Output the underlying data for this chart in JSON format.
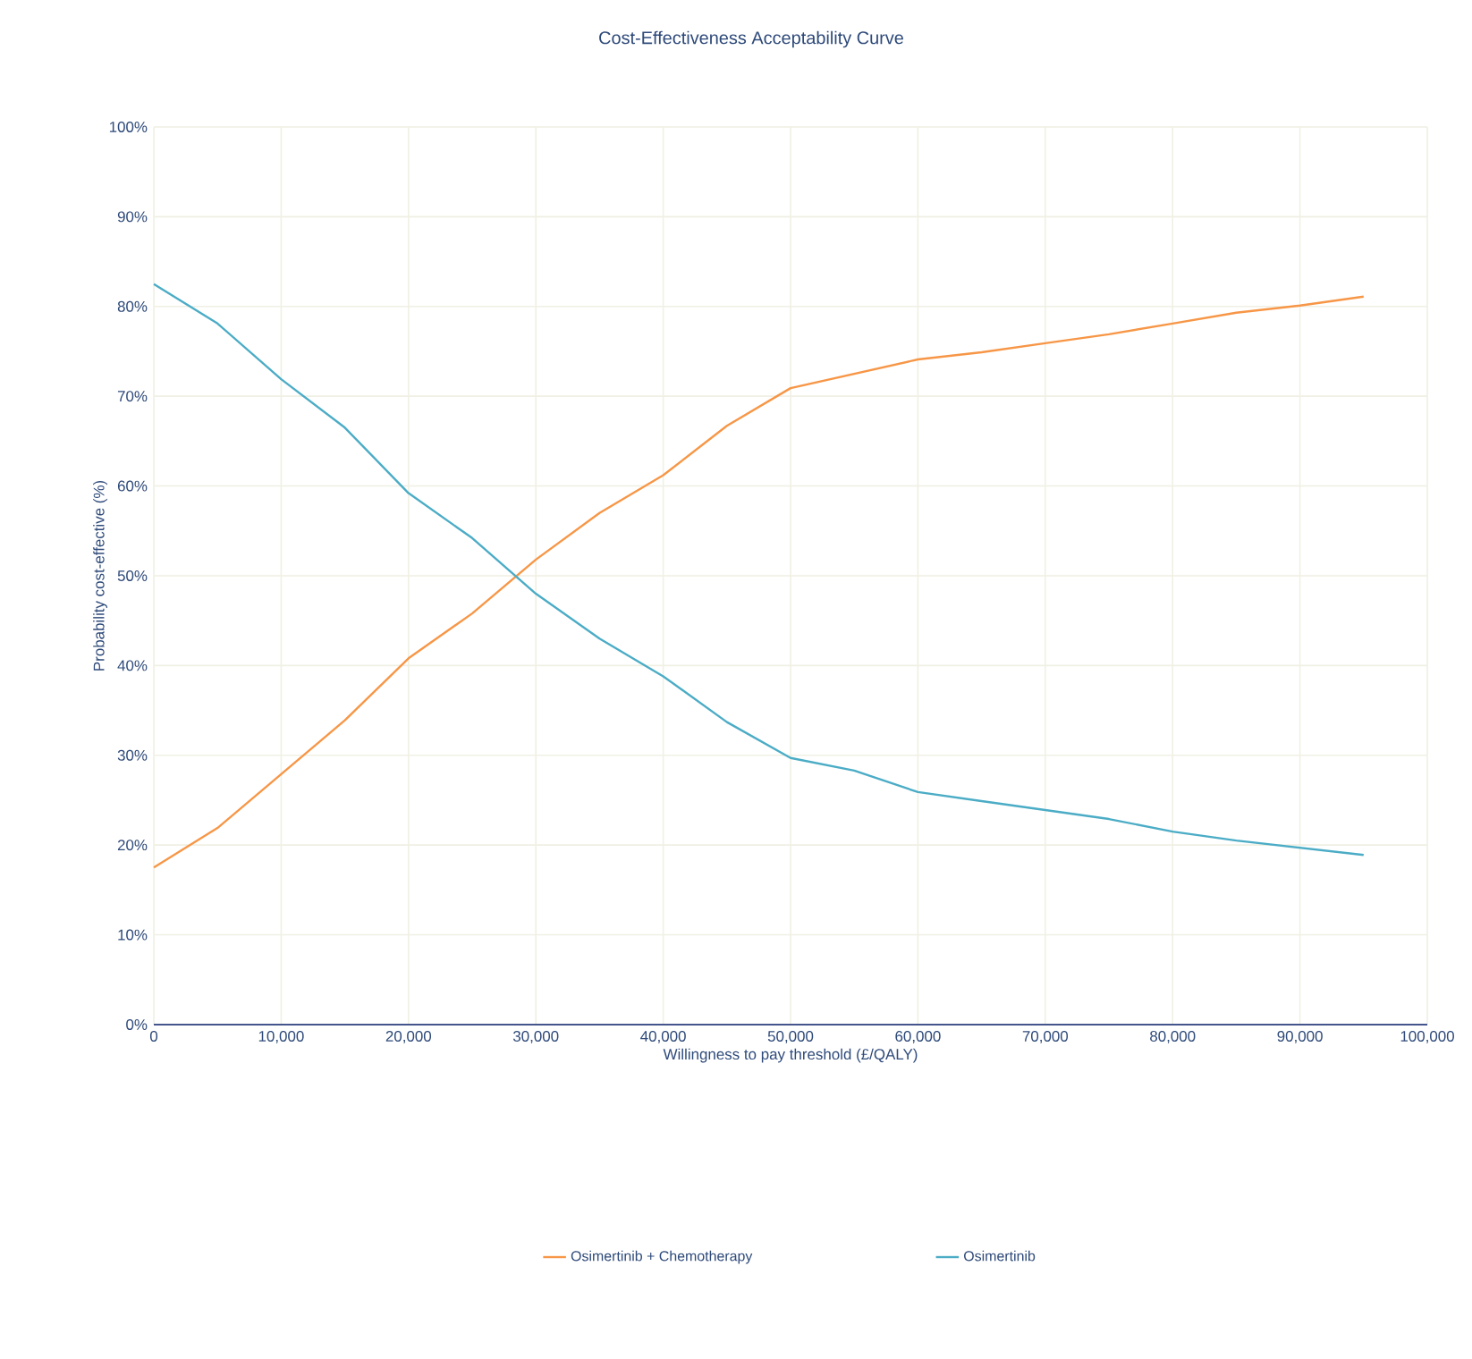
{
  "chart_data": {
    "type": "line",
    "title": "Cost-Effectiveness Acceptability Curve",
    "xlabel": "Willingness to pay threshold (£/QALY)",
    "ylabel": "Probability cost-effective (%)",
    "x": [
      0,
      5000,
      10000,
      15000,
      20000,
      25000,
      30000,
      35000,
      40000,
      45000,
      50000,
      55000,
      60000,
      65000,
      70000,
      75000,
      80000,
      85000,
      90000,
      95000
    ],
    "series": [
      {
        "name": "Osimertinib + Chemotherapy",
        "color": "#f79646",
        "values": [
          17.5,
          21.9,
          27.9,
          33.9,
          40.8,
          45.8,
          51.8,
          57,
          61.2,
          66.7,
          70.9,
          72.5,
          74.1,
          74.9,
          75.9,
          76.9,
          78.1,
          79.3,
          80.1,
          81.1
        ]
      },
      {
        "name": "Osimertinib",
        "color": "#4bacc6",
        "values": [
          82.5,
          78.1,
          71.9,
          66.5,
          59.2,
          54.2,
          48,
          43,
          38.8,
          33.7,
          29.7,
          28.3,
          25.9,
          24.9,
          23.9,
          22.9,
          21.5,
          20.5,
          19.7,
          18.9
        ]
      }
    ],
    "xlim": [
      0,
      100000
    ],
    "xticks": [
      0,
      {
        "value": 10000,
        "label": "10,000"
      },
      {
        "value": 20000,
        "label": "20,000"
      },
      {
        "value": 30000,
        "label": "30,000"
      },
      {
        "value": 40000,
        "label": "40,000"
      },
      {
        "value": 50000,
        "label": "50,000"
      },
      {
        "value": 60000,
        "label": "60,000"
      },
      {
        "value": 70000,
        "label": "70,000"
      },
      {
        "value": 80000,
        "label": "80,000"
      },
      {
        "value": 90000,
        "label": "90,000"
      },
      {
        "value": 100000,
        "label": "100,000"
      }
    ],
    "ylim": [
      0,
      100
    ],
    "yticks": [
      {
        "value": 0,
        "label": "0%"
      },
      {
        "value": 10,
        "label": "10%"
      },
      {
        "value": 20,
        "label": "20%"
      },
      {
        "value": 30,
        "label": "30%"
      },
      {
        "value": 40,
        "label": "40%"
      },
      {
        "value": 50,
        "label": "50%"
      },
      {
        "value": 60,
        "label": "60%"
      },
      {
        "value": 70,
        "label": "70%"
      },
      {
        "value": 80,
        "label": "80%"
      },
      {
        "value": 90,
        "label": "90%"
      },
      {
        "value": 100,
        "label": "100%"
      }
    ],
    "grid": true,
    "legend": "bottom",
    "marker": "none",
    "line_style": "solid"
  }
}
